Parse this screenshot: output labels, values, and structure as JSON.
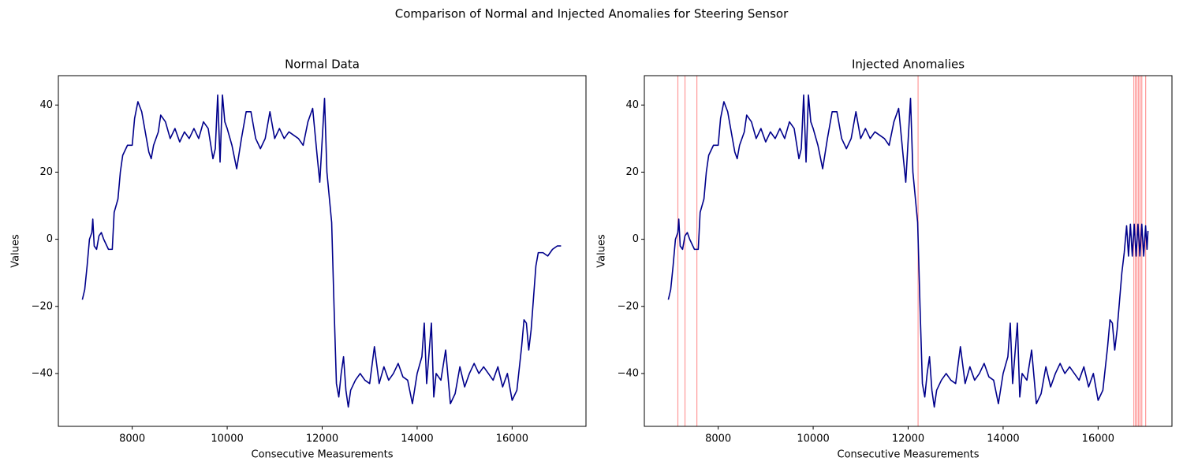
{
  "title": "Comparison of Normal and Injected Anomalies for Steering Sensor",
  "chart_data": [
    {
      "type": "line",
      "title": "Normal Data",
      "xlabel": "Consecutive Measurements",
      "ylabel": "Values",
      "color": "#00008b",
      "xlim": [
        6445,
        17555
      ],
      "ylim": [
        -55.75,
        48.75
      ],
      "xticks": [
        8000,
        10000,
        12000,
        14000,
        16000
      ],
      "yticks": [
        {
          "value": -40,
          "label": "−40"
        },
        {
          "value": -20,
          "label": "−20"
        },
        0,
        20,
        40
      ],
      "x": [
        6950,
        7000,
        7050,
        7100,
        7150,
        7170,
        7200,
        7250,
        7300,
        7350,
        7400,
        7500,
        7580,
        7620,
        7700,
        7750,
        7800,
        7900,
        8000,
        8050,
        8120,
        8200,
        8300,
        8350,
        8400,
        8450,
        8550,
        8600,
        8700,
        8800,
        8900,
        9000,
        9100,
        9200,
        9300,
        9400,
        9500,
        9600,
        9700,
        9750,
        9800,
        9850,
        9900,
        9950,
        10000,
        10100,
        10200,
        10300,
        10400,
        10500,
        10600,
        10700,
        10800,
        10900,
        11000,
        11100,
        11200,
        11300,
        11400,
        11500,
        11600,
        11700,
        11800,
        11900,
        11950,
        12050,
        12100,
        12200,
        12250,
        12300,
        12350,
        12400,
        12450,
        12500,
        12550,
        12600,
        12700,
        12800,
        12900,
        13000,
        13100,
        13200,
        13300,
        13400,
        13500,
        13600,
        13700,
        13800,
        13900,
        14000,
        14100,
        14150,
        14200,
        14300,
        14350,
        14400,
        14500,
        14600,
        14700,
        14800,
        14900,
        15000,
        15100,
        15200,
        15300,
        15400,
        15500,
        15600,
        15700,
        15800,
        15900,
        16000,
        16100,
        16200,
        16250,
        16300,
        16350,
        16400,
        16500,
        16550,
        16650,
        16750,
        16850,
        16950,
        17030
      ],
      "values": [
        -18,
        -15,
        -8,
        0,
        2,
        6,
        -2,
        -3,
        1,
        2,
        0,
        -3,
        -3,
        8,
        12,
        20,
        25,
        28,
        28,
        36,
        41,
        38,
        30,
        26,
        24,
        28,
        32,
        37,
        35,
        30,
        33,
        29,
        32,
        30,
        33,
        30,
        35,
        33,
        24,
        27,
        43,
        23,
        43,
        35,
        33,
        28,
        21,
        30,
        38,
        38,
        30,
        27,
        30,
        38,
        30,
        33,
        30,
        32,
        31,
        30,
        28,
        35,
        39,
        24,
        17,
        42,
        20,
        5,
        -20,
        -43,
        -47,
        -40,
        -35,
        -45,
        -50,
        -45,
        -42,
        -40,
        -42,
        -43,
        -32,
        -43,
        -38,
        -42,
        -40,
        -37,
        -41,
        -42,
        -49,
        -40,
        -35,
        -25,
        -43,
        -25,
        -47,
        -40,
        -42,
        -33,
        -49,
        -46,
        -38,
        -44,
        -40,
        -37,
        -40,
        -38,
        -40,
        -42,
        -38,
        -44,
        -40,
        -48,
        -45,
        -32,
        -24,
        -25,
        -33,
        -27,
        -8,
        -4,
        -4,
        -5,
        -3,
        -2,
        -2
      ]
    },
    {
      "type": "line",
      "title": "Injected Anomalies",
      "xlabel": "Consecutive Measurements",
      "ylabel": "Values",
      "color": "#00008b",
      "xlim": [
        6445,
        17555
      ],
      "ylim": [
        -55.75,
        48.75
      ],
      "xticks": [
        8000,
        10000,
        12000,
        14000,
        16000
      ],
      "yticks": [
        {
          "value": -40,
          "label": "−40"
        },
        {
          "value": -20,
          "label": "−20"
        },
        0,
        20,
        40
      ],
      "x": [
        6950,
        7000,
        7050,
        7100,
        7150,
        7170,
        7200,
        7250,
        7300,
        7350,
        7400,
        7500,
        7580,
        7620,
        7700,
        7750,
        7800,
        7900,
        8000,
        8050,
        8120,
        8200,
        8300,
        8350,
        8400,
        8450,
        8550,
        8600,
        8700,
        8800,
        8900,
        9000,
        9100,
        9200,
        9300,
        9400,
        9500,
        9600,
        9700,
        9750,
        9800,
        9850,
        9900,
        9950,
        10000,
        10100,
        10200,
        10300,
        10400,
        10500,
        10600,
        10700,
        10800,
        10900,
        11000,
        11100,
        11200,
        11300,
        11400,
        11500,
        11600,
        11700,
        11800,
        11900,
        11950,
        12050,
        12100,
        12200,
        12250,
        12300,
        12350,
        12400,
        12450,
        12500,
        12550,
        12600,
        12700,
        12800,
        12900,
        13000,
        13100,
        13200,
        13300,
        13400,
        13500,
        13600,
        13700,
        13800,
        13900,
        14000,
        14100,
        14150,
        14200,
        14300,
        14350,
        14400,
        14500,
        14600,
        14700,
        14800,
        14900,
        15000,
        15100,
        15200,
        15300,
        15400,
        15500,
        15600,
        15700,
        15800,
        15900,
        16000,
        16100,
        16200,
        16250,
        16300,
        16350,
        16400,
        16500,
        16550,
        16600,
        16640,
        16680,
        16720,
        16760,
        16800,
        16840,
        16880,
        16920,
        16960,
        17000,
        17030,
        17050
      ],
      "values": [
        -18,
        -15,
        -8,
        0,
        2,
        6,
        -2,
        -3,
        1,
        2,
        0,
        -3,
        -3,
        8,
        12,
        20,
        25,
        28,
        28,
        36,
        41,
        38,
        30,
        26,
        24,
        28,
        32,
        37,
        35,
        30,
        33,
        29,
        32,
        30,
        33,
        30,
        35,
        33,
        24,
        27,
        43,
        23,
        43,
        35,
        33,
        28,
        21,
        30,
        38,
        38,
        30,
        27,
        30,
        38,
        30,
        33,
        30,
        32,
        31,
        30,
        28,
        35,
        39,
        24,
        17,
        42,
        20,
        5,
        -20,
        -43,
        -47,
        -40,
        -35,
        -45,
        -50,
        -45,
        -42,
        -40,
        -42,
        -43,
        -32,
        -43,
        -38,
        -42,
        -40,
        -37,
        -41,
        -42,
        -49,
        -40,
        -35,
        -25,
        -43,
        -25,
        -47,
        -40,
        -42,
        -33,
        -49,
        -46,
        -38,
        -44,
        -40,
        -37,
        -40,
        -38,
        -40,
        -42,
        -38,
        -44,
        -40,
        -48,
        -45,
        -32,
        -24,
        -25,
        -33,
        -27,
        -10,
        -4,
        4,
        -5,
        4.5,
        -5,
        4.5,
        -5,
        4.5,
        -5,
        4.5,
        -5,
        4,
        -3,
        2.5
      ],
      "anomalies": [
        7151,
        7301,
        7551,
        12209,
        16752,
        16785,
        16818,
        16852,
        16885,
        16920,
        17001
      ],
      "anomaly_color": "#ff9999"
    }
  ]
}
